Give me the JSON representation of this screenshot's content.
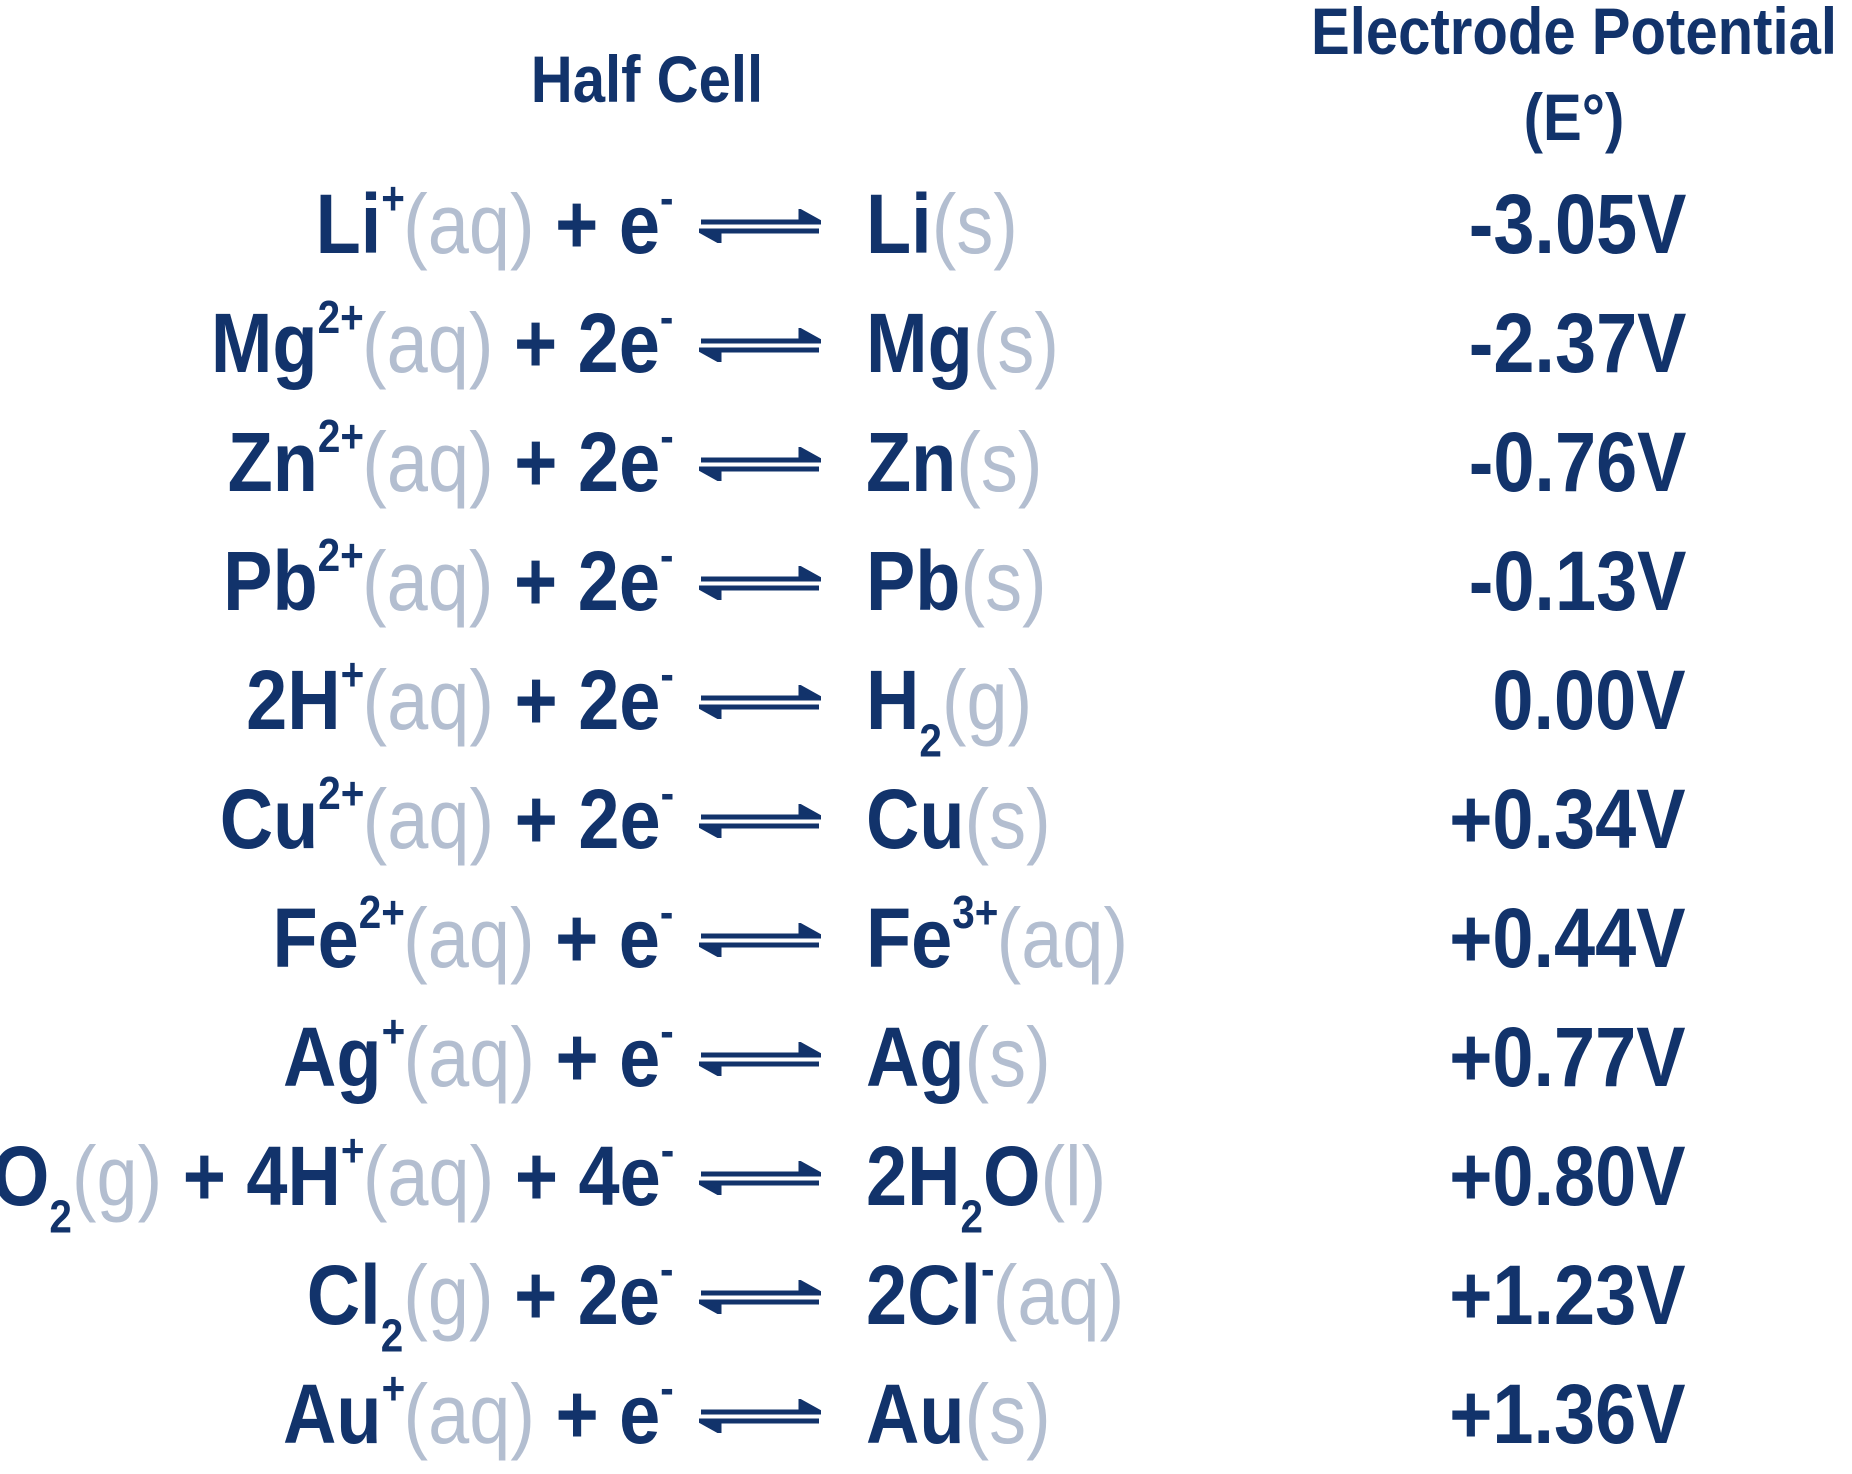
{
  "header": {
    "half_cell": "Half Cell",
    "potential_line1": "Electrode Potential",
    "potential_line2": "(E°)"
  },
  "colors": {
    "species": "#12336b",
    "state": "#b3bed0"
  },
  "rows": [
    {
      "left": [
        [
          "m",
          "Li"
        ],
        [
          "sup",
          "+"
        ],
        [
          "s",
          "(aq)"
        ],
        [
          "m",
          " + e"
        ],
        [
          "sup",
          "-"
        ]
      ],
      "right": [
        [
          "m",
          "Li"
        ],
        [
          "s",
          "(s)"
        ]
      ],
      "potential": "-3.05V"
    },
    {
      "left": [
        [
          "m",
          "Mg"
        ],
        [
          "sup",
          "2+"
        ],
        [
          "s",
          "(aq)"
        ],
        [
          "m",
          " + 2e"
        ],
        [
          "sup",
          "-"
        ]
      ],
      "right": [
        [
          "m",
          "Mg"
        ],
        [
          "s",
          "(s)"
        ]
      ],
      "potential": "-2.37V"
    },
    {
      "left": [
        [
          "m",
          "Zn"
        ],
        [
          "sup",
          "2+"
        ],
        [
          "s",
          "(aq)"
        ],
        [
          "m",
          " + 2e"
        ],
        [
          "sup",
          "-"
        ]
      ],
      "right": [
        [
          "m",
          "Zn"
        ],
        [
          "s",
          "(s)"
        ]
      ],
      "potential": "-0.76V"
    },
    {
      "left": [
        [
          "m",
          "Pb"
        ],
        [
          "sup",
          "2+"
        ],
        [
          "s",
          "(aq)"
        ],
        [
          "m",
          " + 2e"
        ],
        [
          "sup",
          "-"
        ]
      ],
      "right": [
        [
          "m",
          "Pb"
        ],
        [
          "s",
          "(s)"
        ]
      ],
      "potential": "-0.13V"
    },
    {
      "left": [
        [
          "m",
          "2H"
        ],
        [
          "sup",
          "+"
        ],
        [
          "s",
          "(aq)"
        ],
        [
          "m",
          " + 2e"
        ],
        [
          "sup",
          "-"
        ]
      ],
      "right": [
        [
          "m",
          "H"
        ],
        [
          "sub",
          "2"
        ],
        [
          "s",
          "(g)"
        ]
      ],
      "potential": "0.00V"
    },
    {
      "left": [
        [
          "m",
          "Cu"
        ],
        [
          "sup",
          "2+"
        ],
        [
          "s",
          "(aq)"
        ],
        [
          "m",
          " + 2e"
        ],
        [
          "sup",
          "-"
        ]
      ],
      "right": [
        [
          "m",
          "Cu"
        ],
        [
          "s",
          "(s)"
        ]
      ],
      "potential": "+0.34V"
    },
    {
      "left": [
        [
          "m",
          "Fe"
        ],
        [
          "sup",
          "2+"
        ],
        [
          "s",
          "(aq)"
        ],
        [
          "m",
          " + e"
        ],
        [
          "sup",
          "-"
        ]
      ],
      "right": [
        [
          "m",
          "Fe"
        ],
        [
          "sup",
          "3+"
        ],
        [
          "s",
          "(aq)"
        ]
      ],
      "potential": "+0.44V"
    },
    {
      "left": [
        [
          "m",
          "Ag"
        ],
        [
          "sup",
          "+"
        ],
        [
          "s",
          "(aq)"
        ],
        [
          "m",
          " + e"
        ],
        [
          "sup",
          "-"
        ]
      ],
      "right": [
        [
          "m",
          "Ag"
        ],
        [
          "s",
          "(s)"
        ]
      ],
      "potential": "+0.77V"
    },
    {
      "left": [
        [
          "m",
          "O"
        ],
        [
          "sub",
          "2"
        ],
        [
          "s",
          "(g)"
        ],
        [
          "m",
          " + 4H"
        ],
        [
          "sup",
          "+"
        ],
        [
          "s",
          "(aq)"
        ],
        [
          "m",
          " + 4e"
        ],
        [
          "sup",
          "-"
        ]
      ],
      "right": [
        [
          "m",
          "2H"
        ],
        [
          "sub",
          "2"
        ],
        [
          "m",
          "O"
        ],
        [
          "s",
          "(l)"
        ]
      ],
      "potential": "+0.80V"
    },
    {
      "left": [
        [
          "m",
          "Cl"
        ],
        [
          "sub",
          "2"
        ],
        [
          "s",
          "(g)"
        ],
        [
          "m",
          " + 2e"
        ],
        [
          "sup",
          "-"
        ]
      ],
      "right": [
        [
          "m",
          "2Cl"
        ],
        [
          "sup",
          "-"
        ],
        [
          "s",
          "(aq)"
        ]
      ],
      "potential": "+1.23V"
    },
    {
      "left": [
        [
          "m",
          "Au"
        ],
        [
          "sup",
          "+"
        ],
        [
          "s",
          "(aq)"
        ],
        [
          "m",
          " + e"
        ],
        [
          "sup",
          "-"
        ]
      ],
      "right": [
        [
          "m",
          "Au"
        ],
        [
          "s",
          "(s)"
        ]
      ],
      "potential": "+1.36V"
    }
  ]
}
